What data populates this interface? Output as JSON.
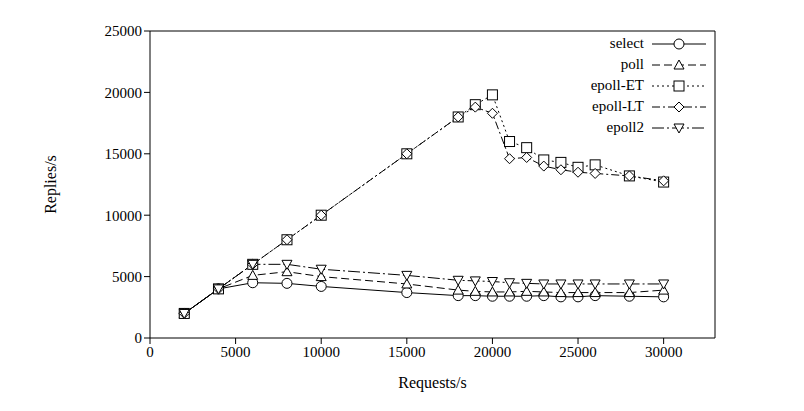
{
  "chart_data": {
    "type": "line",
    "x_label": "Requests/s",
    "y_label": "Replies/s",
    "x": [
      2000,
      4000,
      6000,
      8000,
      10000,
      15000,
      18000,
      19000,
      20000,
      21000,
      22000,
      23000,
      24000,
      25000,
      26000,
      28000,
      30000
    ],
    "series": [
      {
        "name": "select",
        "color": "#000000",
        "marker": "circle",
        "line_style": "solid",
        "values": [
          2000,
          4000,
          4500,
          4450,
          4200,
          3700,
          3450,
          3450,
          3400,
          3400,
          3400,
          3450,
          3350,
          3350,
          3450,
          3400,
          3350
        ]
      },
      {
        "name": "poll",
        "color": "#000000",
        "marker": "triangle",
        "line_style": "dashed",
        "values": [
          2000,
          4000,
          5100,
          5400,
          5000,
          4400,
          3900,
          3800,
          3750,
          3750,
          3800,
          3750,
          3700,
          3700,
          3700,
          3700,
          3900
        ]
      },
      {
        "name": "epoll-ET",
        "color": "#000000",
        "marker": "square",
        "line_style": "dotted",
        "values": [
          2000,
          4000,
          6000,
          8000,
          10000,
          15000,
          18000,
          19000,
          19800,
          16000,
          15500,
          14500,
          14300,
          13900,
          14100,
          13200,
          12700
        ]
      },
      {
        "name": "epoll-LT",
        "color": "#000000",
        "marker": "diamond",
        "line_style": "dashdot",
        "values": [
          2000,
          4000,
          6000,
          8000,
          10000,
          15000,
          18000,
          18800,
          18300,
          14600,
          14700,
          14000,
          13700,
          13500,
          13400,
          13200,
          12800
        ]
      },
      {
        "name": "epoll2",
        "color": "#000000",
        "marker": "triangle-down",
        "line_style": "longdashdot",
        "values": [
          2000,
          4000,
          6000,
          6000,
          5600,
          5100,
          4700,
          4650,
          4600,
          4500,
          4450,
          4400,
          4400,
          4400,
          4400,
          4400,
          4400
        ]
      }
    ],
    "xlim": [
      0,
      33000
    ],
    "ylim": [
      0,
      25000
    ],
    "xticks": [
      0,
      5000,
      10000,
      15000,
      20000,
      25000,
      30000
    ],
    "yticks": [
      0,
      5000,
      10000,
      15000,
      20000,
      25000
    ],
    "legend": "upper right",
    "grid": false
  }
}
